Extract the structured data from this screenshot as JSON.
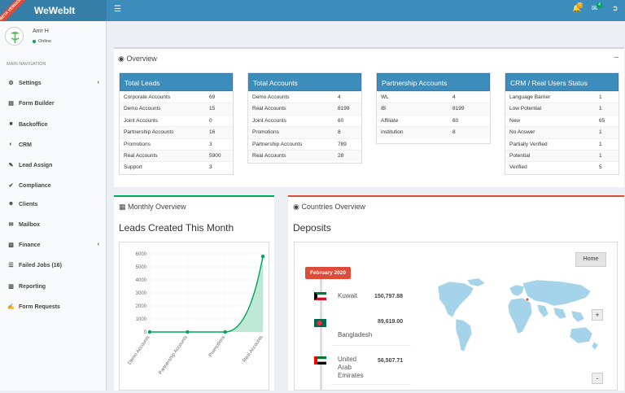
{
  "app": {
    "title": "WeWebIt",
    "beta": "BETA VERSION"
  },
  "topbar": {
    "notif_badge": "0",
    "mail_badge": "4"
  },
  "user": {
    "name": "Amr H",
    "status": "Online"
  },
  "sidebar": {
    "header": "MAIN NAVIGATION",
    "items": [
      {
        "label": "Settings",
        "icon": "gears-icon"
      },
      {
        "label": "Form Builder",
        "icon": "list-alt-icon"
      },
      {
        "label": "Backoffice",
        "icon": "building-icon"
      },
      {
        "label": "CRM",
        "icon": "crm-icon"
      },
      {
        "label": "Lead Assign",
        "icon": "pencil-icon"
      },
      {
        "label": "Compliance",
        "icon": "check-circle-icon"
      },
      {
        "label": "Clients",
        "icon": "users-icon"
      },
      {
        "label": "Mailbox",
        "icon": "envelope-icon"
      },
      {
        "label": "Finance",
        "icon": "money-icon"
      },
      {
        "label": "Failed Jobs (16)",
        "icon": "list-icon"
      },
      {
        "label": "Reporting",
        "icon": "bar-chart-icon"
      },
      {
        "label": "Form Requests",
        "icon": "edit-icon"
      }
    ]
  },
  "overview": {
    "title": "Overview",
    "panels": [
      {
        "title": "Total Leads",
        "rows": [
          [
            "Corporate Accounts",
            "69"
          ],
          [
            "Demo Accounts",
            "15"
          ],
          [
            "Joint Accounts",
            "0"
          ],
          [
            "Partnership Accounts",
            "16"
          ],
          [
            "Promotions",
            "3"
          ],
          [
            "Real Accounts",
            "5900"
          ],
          [
            "Support",
            "3"
          ]
        ]
      },
      {
        "title": "Total Accounts",
        "rows": [
          [
            "Demo Accounts",
            "4"
          ],
          [
            "Real Accounts",
            "8199"
          ],
          [
            "Joint Accounts",
            "60"
          ],
          [
            "Promotions",
            "8"
          ],
          [
            "Partnership Accounts",
            "789"
          ],
          [
            "Real Accounts",
            "28"
          ]
        ]
      },
      {
        "title": "Partnership Accounts",
        "rows": [
          [
            "WL",
            "4"
          ],
          [
            "IB",
            "8199"
          ],
          [
            "Affiliate",
            "60"
          ],
          [
            "institution",
            "8"
          ]
        ]
      },
      {
        "title": "CRM / Real Users Status",
        "rows": [
          [
            "Language Barrier",
            "1"
          ],
          [
            "Low Potential",
            "1"
          ],
          [
            "New",
            "65"
          ],
          [
            "No Answer",
            "1"
          ],
          [
            "Partially Verified",
            "1"
          ],
          [
            "Potential",
            "1"
          ],
          [
            "Verified",
            "5"
          ]
        ]
      }
    ]
  },
  "monthly": {
    "title": "Monthly Overview",
    "subtitle": "Leads Created This Month"
  },
  "countries": {
    "title": "Countries Overview",
    "subtitle": "Deposits",
    "home": "Home",
    "month": "February 2020",
    "items": [
      {
        "country": "Kuwait",
        "amount": "150,797.88"
      },
      {
        "country": "Bangladesh",
        "amount": "89,619.00"
      },
      {
        "country": "United Arab Emirates",
        "amount": "56,507.71"
      }
    ]
  },
  "chart_data": {
    "type": "area",
    "categories": [
      "Demo Accounts",
      "Partnership Accounts",
      "Promotions",
      "Real Accounts"
    ],
    "values": [
      0,
      0,
      0,
      5800
    ],
    "yticks": [
      "6000",
      "5000",
      "4000",
      "3000",
      "2000",
      "1000",
      "0"
    ],
    "ylim": [
      0,
      6000
    ],
    "color": "#00a65a"
  }
}
